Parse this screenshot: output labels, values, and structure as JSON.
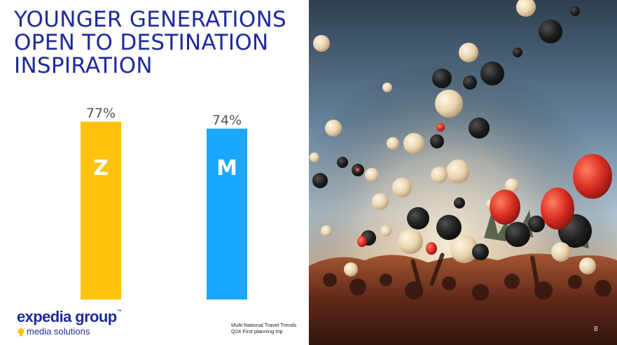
{
  "title": "YOUNGER GENERATIONS OPEN TO DESTINATION INSPIRATION",
  "chart_data": {
    "type": "bar",
    "categories": [
      "Z",
      "M"
    ],
    "values": [
      77,
      74
    ],
    "data_labels": [
      "77%",
      "74%"
    ],
    "colors": [
      "#ffc20e",
      "#1aa7ff"
    ],
    "ylim": [
      0,
      100
    ],
    "grid": false,
    "legend": "none",
    "title": "",
    "xlabel": "",
    "ylabel": ""
  },
  "logo": {
    "name": "expedia group",
    "tm": "™",
    "tagline": "media solutions"
  },
  "source": {
    "line1": "Multi-National Travel Trends",
    "line2": "Q24 First planning trip"
  },
  "page_number": "8",
  "photo": {
    "description_icon": "balloons-concert-photo"
  }
}
